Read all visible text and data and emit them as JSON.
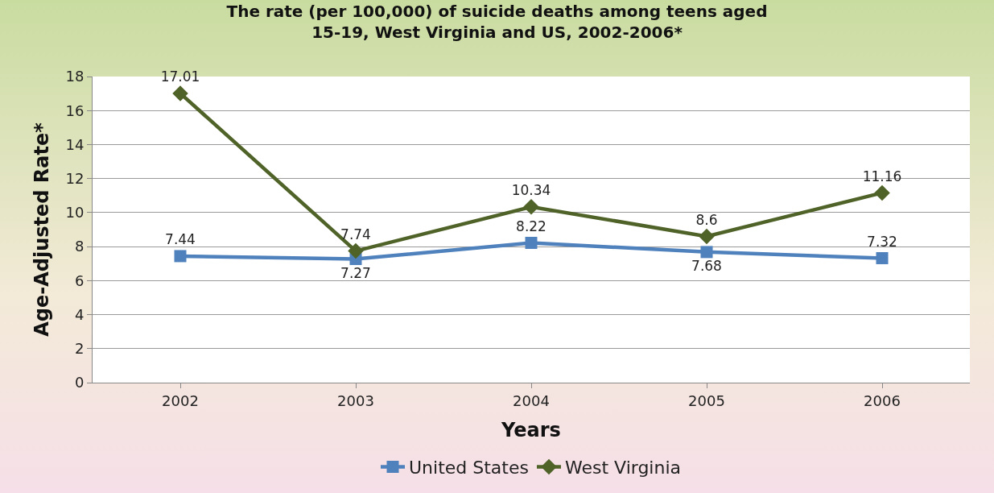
{
  "chart_data": {
    "type": "line",
    "title": "The rate (per 100,000) of suicide deaths among teens aged\n15-19, West Virginia and US, 2002-2006*",
    "xlabel": "Years",
    "ylabel": "Age-Adjusted Rate*",
    "categories": [
      "2002",
      "2003",
      "2004",
      "2005",
      "2006"
    ],
    "series": [
      {
        "name": "United States",
        "color": "#4f81bd",
        "marker": "square",
        "values": [
          7.44,
          7.27,
          8.22,
          7.68,
          7.32
        ]
      },
      {
        "name": "West Virginia",
        "color": "#4f6228",
        "marker": "diamond",
        "values": [
          17.01,
          7.74,
          10.34,
          8.6,
          11.16
        ]
      }
    ],
    "ylim": [
      0,
      18
    ],
    "yticks": [
      0,
      2,
      4,
      6,
      8,
      10,
      12,
      14,
      16,
      18
    ],
    "grid": "y",
    "legend": "bottom",
    "data_labels": true,
    "line_style": "solid"
  }
}
